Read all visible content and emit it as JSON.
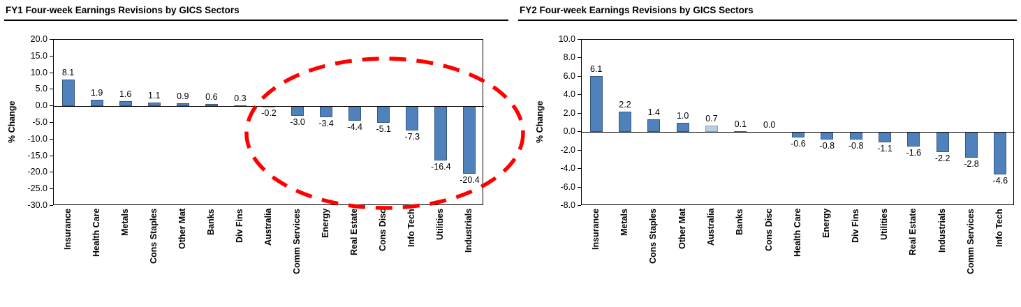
{
  "page": {
    "background": "#FFFFFF"
  },
  "chart_data": [
    {
      "type": "bar",
      "title": "FY1 Four-week Earnings Revisions by GICS Sectors",
      "ylabel": "% Change",
      "xlabel": "",
      "ylim": [
        -30,
        20
      ],
      "ytick_step": 5,
      "grid": false,
      "legend": false,
      "categories": [
        "Insurance",
        "Health Care",
        "Metals",
        "Cons Staples",
        "Other Mat",
        "Banks",
        "Div Fins",
        "Australia",
        "Comm Services",
        "Energy",
        "Real Estate",
        "Cons Disc",
        "Info Tech",
        "Utilities",
        "Industrials"
      ],
      "values": [
        8.1,
        1.9,
        1.6,
        1.1,
        0.9,
        0.6,
        0.3,
        -0.2,
        -3.0,
        -3.4,
        -4.4,
        -5.1,
        -7.3,
        -16.4,
        -20.4
      ],
      "highlight_category": "Australia"
    },
    {
      "type": "bar",
      "title": "FY2 Four-week Earnings Revisions by GICS Sectors",
      "ylabel": "% Change",
      "xlabel": "",
      "ylim": [
        -8,
        10
      ],
      "ytick_step": 2,
      "grid": false,
      "legend": false,
      "categories": [
        "Insurance",
        "Metals",
        "Cons Staples",
        "Other Mat",
        "Australia",
        "Banks",
        "Cons Disc",
        "Health Care",
        "Energy",
        "Div Fins",
        "Utilities",
        "Real Estate",
        "Industrials",
        "Comm Services",
        "Info Tech"
      ],
      "values": [
        6.1,
        2.2,
        1.4,
        1.0,
        0.7,
        0.1,
        0.0,
        -0.6,
        -0.8,
        -0.8,
        -1.1,
        -1.6,
        -2.2,
        -2.8,
        -4.6
      ],
      "highlight_category": "Australia"
    }
  ],
  "annotation": {
    "shape": "dashed-ellipse",
    "color": "#FF0000",
    "target": "negative FY1 sectors"
  },
  "colors": {
    "bar": "#4F81BD",
    "bar_border": "#36587F",
    "bar_highlight": "#B9CDE5",
    "bar_highlight_border": "#7BA0C8"
  }
}
